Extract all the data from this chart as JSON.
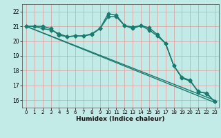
{
  "xlabel": "Humidex (Indice chaleur)",
  "background_color": "#c2ebe8",
  "grid_color": "#e89090",
  "line_color": "#1a7a6e",
  "xlim": [
    -0.5,
    23.5
  ],
  "ylim": [
    15.5,
    22.5
  ],
  "xticks": [
    0,
    1,
    2,
    3,
    4,
    5,
    6,
    7,
    8,
    9,
    10,
    11,
    12,
    13,
    14,
    15,
    16,
    17,
    18,
    19,
    20,
    21,
    22,
    23
  ],
  "yticks": [
    16,
    17,
    18,
    19,
    20,
    21,
    22
  ],
  "series": [
    {
      "x": [
        0,
        1,
        2,
        3,
        4,
        5,
        6,
        7,
        8,
        9,
        10,
        11,
        12,
        13,
        14,
        15,
        16,
        17,
        18,
        19,
        20,
        21,
        22,
        23
      ],
      "y": [
        21.0,
        21.0,
        21.0,
        20.85,
        20.4,
        20.3,
        20.35,
        20.35,
        20.45,
        20.85,
        21.85,
        21.75,
        21.05,
        20.85,
        21.05,
        20.75,
        20.35,
        19.85,
        18.35,
        17.55,
        17.35,
        16.55,
        16.5,
        15.9
      ],
      "marker": "D",
      "markersize": 2.5,
      "linewidth": 1.1
    },
    {
      "x": [
        0,
        1,
        2,
        3,
        4,
        5,
        6,
        7,
        8,
        9,
        10,
        11,
        12,
        13,
        14,
        15,
        16,
        17,
        18,
        19,
        20,
        21,
        22,
        23
      ],
      "y": [
        21.0,
        21.0,
        20.85,
        20.75,
        20.5,
        20.3,
        20.35,
        20.35,
        20.5,
        20.85,
        21.65,
        21.65,
        21.05,
        20.95,
        21.05,
        20.9,
        20.45,
        19.85,
        18.35,
        17.5,
        17.3,
        16.6,
        16.45,
        15.9
      ],
      "marker": "D",
      "markersize": 2.5,
      "linewidth": 1.1
    },
    {
      "x": [
        0,
        23
      ],
      "y": [
        21.0,
        16.0
      ],
      "marker": null,
      "markersize": 0,
      "linewidth": 1.0
    },
    {
      "x": [
        0,
        23
      ],
      "y": [
        21.0,
        15.85
      ],
      "marker": null,
      "markersize": 0,
      "linewidth": 1.0
    }
  ]
}
